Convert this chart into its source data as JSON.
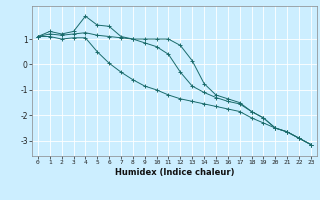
{
  "title": "",
  "xlabel": "Humidex (Indice chaleur)",
  "bg_color": "#cceeff",
  "line_color": "#1a6b6b",
  "grid_color": "#ffffff",
  "xlim": [
    -0.5,
    23.5
  ],
  "ylim": [
    -3.6,
    2.3
  ],
  "xticks": [
    0,
    1,
    2,
    3,
    4,
    5,
    6,
    7,
    8,
    9,
    10,
    11,
    12,
    13,
    14,
    15,
    16,
    17,
    18,
    19,
    20,
    21,
    22,
    23
  ],
  "yticks": [
    -3,
    -2,
    -1,
    0,
    1
  ],
  "series": [
    {
      "x": [
        0,
        1,
        2,
        3,
        4,
        5,
        6,
        7,
        8,
        9,
        10,
        11,
        12,
        13,
        14,
        15,
        16,
        17,
        18,
        19,
        20,
        21,
        22,
        23
      ],
      "y": [
        1.1,
        1.3,
        1.2,
        1.3,
        1.9,
        1.55,
        1.5,
        1.1,
        1.0,
        1.0,
        1.0,
        1.0,
        0.75,
        0.15,
        -0.75,
        -1.2,
        -1.35,
        -1.5,
        -1.85,
        -2.1,
        -2.5,
        -2.65,
        -2.9,
        -3.15
      ]
    },
    {
      "x": [
        0,
        1,
        2,
        3,
        4,
        5,
        6,
        7,
        8,
        9,
        10,
        11,
        12,
        13,
        14,
        15,
        16,
        17,
        18,
        19,
        20,
        21,
        22,
        23
      ],
      "y": [
        1.1,
        1.2,
        1.15,
        1.2,
        1.25,
        1.15,
        1.1,
        1.05,
        1.0,
        0.85,
        0.7,
        0.4,
        -0.3,
        -0.85,
        -1.1,
        -1.3,
        -1.45,
        -1.55,
        -1.85,
        -2.1,
        -2.5,
        -2.65,
        -2.9,
        -3.15
      ]
    },
    {
      "x": [
        0,
        1,
        2,
        3,
        4,
        5,
        6,
        7,
        8,
        9,
        10,
        11,
        12,
        13,
        14,
        15,
        16,
        17,
        18,
        19,
        20,
        21,
        22,
        23
      ],
      "y": [
        1.1,
        1.1,
        1.0,
        1.05,
        1.05,
        0.5,
        0.05,
        -0.3,
        -0.6,
        -0.85,
        -1.0,
        -1.2,
        -1.35,
        -1.45,
        -1.55,
        -1.65,
        -1.75,
        -1.85,
        -2.1,
        -2.3,
        -2.5,
        -2.65,
        -2.9,
        -3.15
      ]
    }
  ]
}
